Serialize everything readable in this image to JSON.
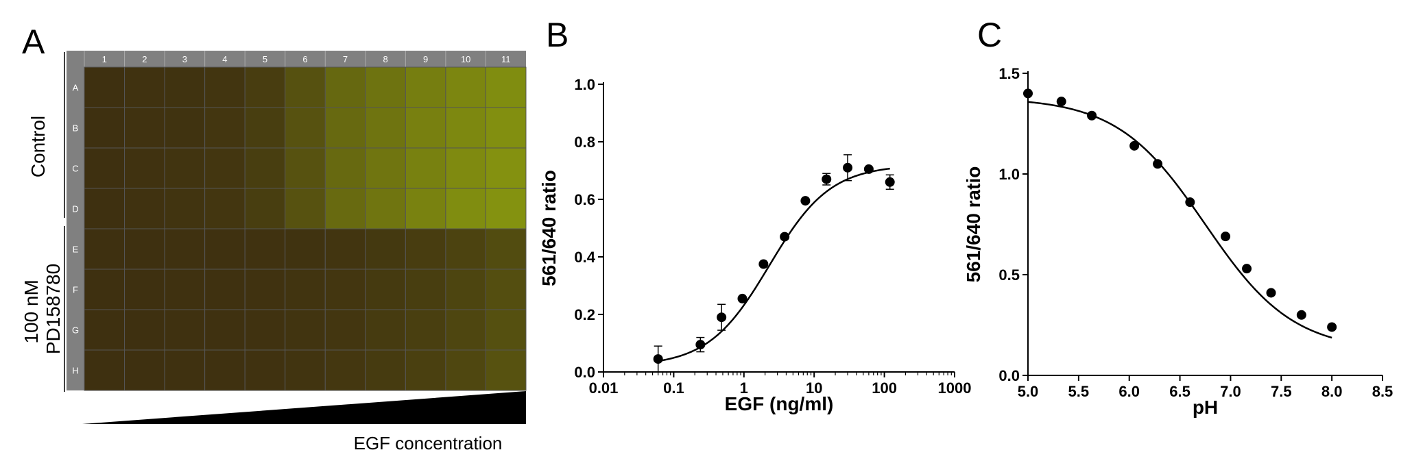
{
  "panel_a": {
    "letter": "A",
    "columns": [
      "1",
      "2",
      "3",
      "4",
      "5",
      "6",
      "7",
      "8",
      "9",
      "10",
      "11"
    ],
    "rows": [
      "A",
      "B",
      "C",
      "D",
      "E",
      "F",
      "G",
      "H"
    ],
    "row_groups": [
      {
        "label": "Control",
        "rows": [
          "A",
          "B",
          "C",
          "D"
        ]
      },
      {
        "label": "100 nM\nPD158780",
        "rows": [
          "E",
          "F",
          "G",
          "H"
        ]
      }
    ],
    "gradient_label": "EGF concentration",
    "well_green_level": [
      [
        0.05,
        0.07,
        0.08,
        0.1,
        0.17,
        0.35,
        0.55,
        0.65,
        0.75,
        0.82,
        0.88
      ],
      [
        0.05,
        0.07,
        0.08,
        0.11,
        0.18,
        0.36,
        0.56,
        0.66,
        0.77,
        0.84,
        0.9
      ],
      [
        0.05,
        0.07,
        0.09,
        0.11,
        0.18,
        0.36,
        0.56,
        0.67,
        0.78,
        0.86,
        0.92
      ],
      [
        0.05,
        0.07,
        0.09,
        0.11,
        0.18,
        0.36,
        0.57,
        0.67,
        0.79,
        0.88,
        0.93
      ],
      [
        0.05,
        0.05,
        0.06,
        0.06,
        0.07,
        0.08,
        0.1,
        0.13,
        0.17,
        0.22,
        0.3
      ],
      [
        0.05,
        0.05,
        0.06,
        0.06,
        0.07,
        0.09,
        0.11,
        0.14,
        0.18,
        0.24,
        0.32
      ],
      [
        0.05,
        0.05,
        0.06,
        0.06,
        0.07,
        0.09,
        0.11,
        0.15,
        0.19,
        0.25,
        0.34
      ],
      [
        0.05,
        0.05,
        0.06,
        0.06,
        0.07,
        0.09,
        0.12,
        0.15,
        0.2,
        0.26,
        0.36
      ]
    ],
    "colors": {
      "header": "#808080",
      "well_dark": "#3a2a10",
      "well_bright": "#8a9a10"
    }
  },
  "chart_data": [
    {
      "type": "scatter",
      "panel": "B",
      "xlabel": "EGF (ng/ml)",
      "ylabel": "561/640 ratio",
      "xscale": "log",
      "xlim": [
        0.01,
        1000
      ],
      "ylim": [
        0,
        1.0
      ],
      "xticks": [
        "0.01",
        "0.1",
        "1",
        "10",
        "100",
        "1000"
      ],
      "xtick_values": [
        0.01,
        0.1,
        1,
        10,
        100,
        1000
      ],
      "yticks": [
        "0.0",
        "0.2",
        "0.4",
        "0.6",
        "0.8",
        "1.0"
      ],
      "ytick_values": [
        0,
        0.2,
        0.4,
        0.6,
        0.8,
        1.0
      ],
      "points": [
        {
          "x": 0.06,
          "y": 0.045,
          "err": 0.045
        },
        {
          "x": 0.24,
          "y": 0.095,
          "err": 0.025
        },
        {
          "x": 0.48,
          "y": 0.19,
          "err": 0.045
        },
        {
          "x": 0.95,
          "y": 0.255,
          "err": 0
        },
        {
          "x": 1.9,
          "y": 0.375,
          "err": 0
        },
        {
          "x": 3.8,
          "y": 0.47,
          "err": 0
        },
        {
          "x": 7.5,
          "y": 0.595,
          "err": 0
        },
        {
          "x": 15,
          "y": 0.67,
          "err": 0.02
        },
        {
          "x": 30,
          "y": 0.71,
          "err": 0.045
        },
        {
          "x": 60,
          "y": 0.705,
          "err": 0
        },
        {
          "x": 120,
          "y": 0.66,
          "err": 0.025
        }
      ],
      "fit": {
        "bottom": 0.02,
        "top": 0.72,
        "ec50": 2.3,
        "hill": 1.0,
        "x_from": 0.06,
        "x_to": 120
      },
      "grid": false
    },
    {
      "type": "scatter",
      "panel": "C",
      "xlabel": "pH",
      "ylabel": "561/640 ratio",
      "xlim": [
        5.0,
        8.5
      ],
      "ylim": [
        0,
        1.5
      ],
      "xticks": [
        "5.0",
        "5.5",
        "6.0",
        "6.5",
        "7.0",
        "7.5",
        "8.0",
        "8.5"
      ],
      "xtick_values": [
        5.0,
        5.5,
        6.0,
        6.5,
        7.0,
        7.5,
        8.0,
        8.5
      ],
      "yticks": [
        "0.0",
        "0.5",
        "1.0",
        "1.5"
      ],
      "ytick_values": [
        0,
        0.5,
        1.0,
        1.5
      ],
      "points": [
        {
          "x": 5.0,
          "y": 1.4
        },
        {
          "x": 5.33,
          "y": 1.36
        },
        {
          "x": 5.63,
          "y": 1.29
        },
        {
          "x": 6.05,
          "y": 1.14
        },
        {
          "x": 6.28,
          "y": 1.05
        },
        {
          "x": 6.6,
          "y": 0.86
        },
        {
          "x": 6.95,
          "y": 0.69
        },
        {
          "x": 7.16,
          "y": 0.53
        },
        {
          "x": 7.4,
          "y": 0.41
        },
        {
          "x": 7.7,
          "y": 0.3
        },
        {
          "x": 8.0,
          "y": 0.24
        }
      ],
      "fit": {
        "bottom": 0.12,
        "top": 1.38,
        "pka": 6.75,
        "hill": 1.0,
        "x_from": 5.0,
        "x_to": 8.0
      },
      "grid": false
    }
  ]
}
